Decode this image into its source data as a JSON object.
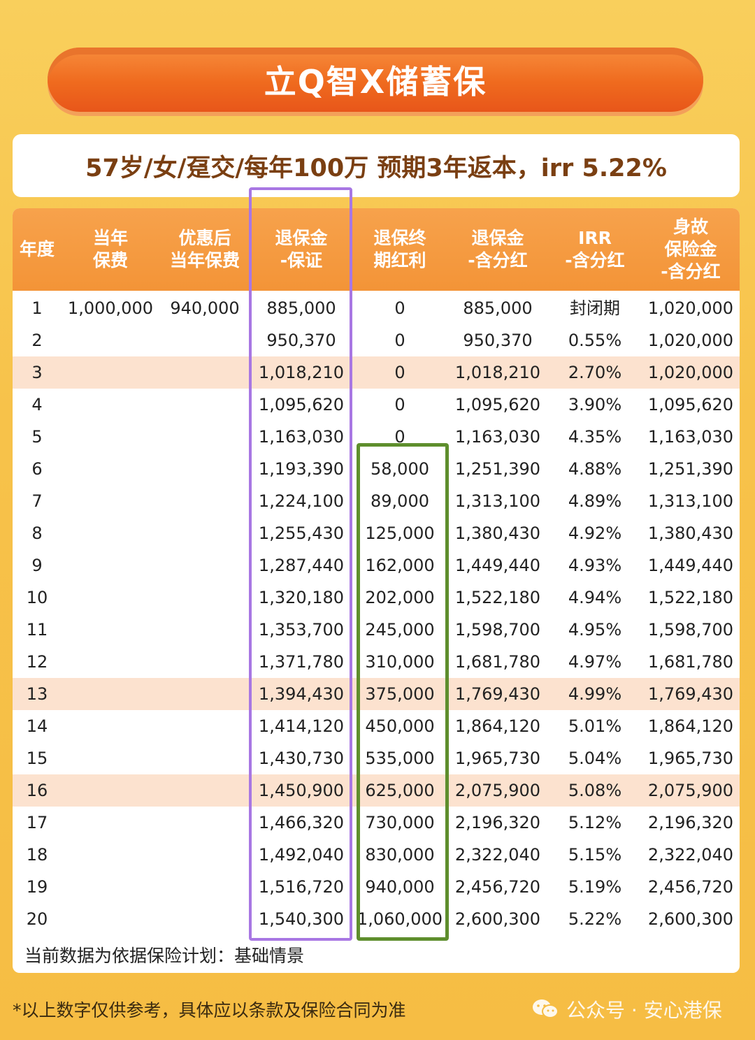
{
  "title": "立Q智X储蓄保",
  "subtitle": "57岁/女/趸交/每年100万  预期3年返本，irr 5.22%",
  "table": {
    "headers": [
      "年度",
      "当年\n保费",
      "优惠后\n当年保费",
      "退保金\n-保证",
      "退保终\n期红利",
      "退保金\n-含分红",
      "IRR\n-含分红",
      "身故\n保险金\n-含分红"
    ],
    "rows": [
      [
        "1",
        "1,000,000",
        "940,000",
        "885,000",
        "0",
        "885,000",
        "封闭期",
        "1,020,000"
      ],
      [
        "2",
        "",
        "",
        "950,370",
        "0",
        "950,370",
        "0.55%",
        "1,020,000"
      ],
      [
        "3",
        "",
        "",
        "1,018,210",
        "0",
        "1,018,210",
        "2.70%",
        "1,020,000"
      ],
      [
        "4",
        "",
        "",
        "1,095,620",
        "0",
        "1,095,620",
        "3.90%",
        "1,095,620"
      ],
      [
        "5",
        "",
        "",
        "1,163,030",
        "0",
        "1,163,030",
        "4.35%",
        "1,163,030"
      ],
      [
        "6",
        "",
        "",
        "1,193,390",
        "58,000",
        "1,251,390",
        "4.88%",
        "1,251,390"
      ],
      [
        "7",
        "",
        "",
        "1,224,100",
        "89,000",
        "1,313,100",
        "4.89%",
        "1,313,100"
      ],
      [
        "8",
        "",
        "",
        "1,255,430",
        "125,000",
        "1,380,430",
        "4.92%",
        "1,380,430"
      ],
      [
        "9",
        "",
        "",
        "1,287,440",
        "162,000",
        "1,449,440",
        "4.93%",
        "1,449,440"
      ],
      [
        "10",
        "",
        "",
        "1,320,180",
        "202,000",
        "1,522,180",
        "4.94%",
        "1,522,180"
      ],
      [
        "11",
        "",
        "",
        "1,353,700",
        "245,000",
        "1,598,700",
        "4.95%",
        "1,598,700"
      ],
      [
        "12",
        "",
        "",
        "1,371,780",
        "310,000",
        "1,681,780",
        "4.97%",
        "1,681,780"
      ],
      [
        "13",
        "",
        "",
        "1,394,430",
        "375,000",
        "1,769,430",
        "4.99%",
        "1,769,430"
      ],
      [
        "14",
        "",
        "",
        "1,414,120",
        "450,000",
        "1,864,120",
        "5.01%",
        "1,864,120"
      ],
      [
        "15",
        "",
        "",
        "1,430,730",
        "535,000",
        "1,965,730",
        "5.04%",
        "1,965,730"
      ],
      [
        "16",
        "",
        "",
        "1,450,900",
        "625,000",
        "2,075,900",
        "5.08%",
        "2,075,900"
      ],
      [
        "17",
        "",
        "",
        "1,466,320",
        "730,000",
        "2,196,320",
        "5.12%",
        "2,196,320"
      ],
      [
        "18",
        "",
        "",
        "1,492,040",
        "830,000",
        "2,322,040",
        "5.15%",
        "2,322,040"
      ],
      [
        "19",
        "",
        "",
        "1,516,720",
        "940,000",
        "2,456,720",
        "5.19%",
        "2,456,720"
      ],
      [
        "20",
        "",
        "",
        "1,540,300",
        "1,060,000",
        "2,600,300",
        "5.22%",
        "2,600,300"
      ]
    ],
    "highlighted_years": [
      "3",
      "13",
      "16"
    ]
  },
  "note": "当前数据为依据保险计划：基础情景",
  "disclaimer": "*以上数字仅供参考，具体应以条款及保险合同为准",
  "watermark": "公众号 · 安心港保",
  "colors": {
    "title_bar": "#ef6a1e",
    "header_bg": "#f39437",
    "row_highlight": "#fce2cf",
    "guaranteed_box": "#a877e3",
    "bonus_box": "#5e8e2d"
  }
}
